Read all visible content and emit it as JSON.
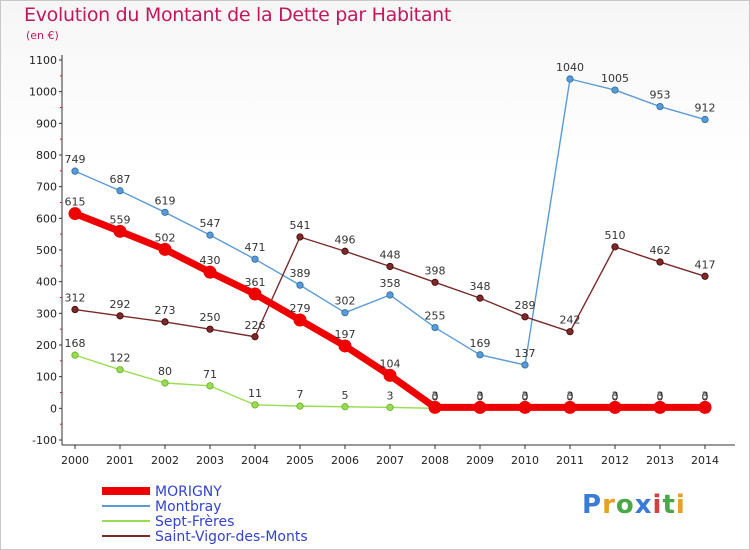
{
  "title": "Evolution du Montant de la Dette par Habitant",
  "subtitle": "(en €)",
  "logo": "Proxiti",
  "chart_data": {
    "type": "line",
    "title": "Evolution du Montant de la Dette par Habitant",
    "ylabel": "(en €)",
    "ylim": [
      -100,
      1100
    ],
    "yticks": [
      -100,
      0,
      100,
      200,
      300,
      400,
      500,
      600,
      700,
      800,
      900,
      1000,
      1100
    ],
    "x": [
      2000,
      2001,
      2002,
      2003,
      2004,
      2005,
      2006,
      2007,
      2008,
      2009,
      2010,
      2011,
      2012,
      2013,
      2014
    ],
    "grid": false,
    "legend": "bottom-left",
    "series": [
      {
        "name": "MORIGNY",
        "color": "#ee0000",
        "values": [
          615,
          559,
          502,
          430,
          361,
          279,
          197,
          104,
          3,
          3,
          3,
          3,
          3,
          3,
          3
        ]
      },
      {
        "name": "Montbray",
        "color": "#5b9bd5",
        "values": [
          749,
          687,
          619,
          547,
          471,
          389,
          302,
          358,
          255,
          169,
          137,
          1040,
          1005,
          953,
          912
        ]
      },
      {
        "name": "Sept-Frères",
        "color": "#99dd55",
        "values": [
          168,
          122,
          80,
          71,
          11,
          7,
          5,
          3,
          0,
          0,
          0,
          0,
          0,
          0,
          0
        ]
      },
      {
        "name": "Saint-Vigor-des-Monts",
        "color": "#7a2a2a",
        "values": [
          312,
          292,
          273,
          250,
          226,
          541,
          496,
          448,
          398,
          348,
          289,
          242,
          510,
          462,
          417
        ]
      }
    ],
    "labels": [
      {
        "series": 0,
        "text": [
          "615",
          "559",
          "502",
          "430",
          "361",
          "279",
          "197",
          "104",
          "3",
          "3",
          "3",
          "3",
          "3",
          "3",
          "3"
        ]
      },
      {
        "series": 1,
        "text": [
          "749",
          "687",
          "619",
          "547",
          "471",
          "389",
          "302",
          "358",
          "255",
          "169",
          "137",
          "1040",
          "1005",
          "953",
          "912"
        ]
      },
      {
        "series": 2,
        "text": [
          "168",
          "122",
          "80",
          "71",
          "11",
          "7",
          "5",
          "3",
          "0",
          "0",
          "0",
          "0",
          "0",
          "0",
          "0"
        ]
      },
      {
        "series": 3,
        "text": [
          "312",
          "292",
          "273",
          "250",
          "226",
          "541",
          "496",
          "448",
          "398",
          "348",
          "289",
          "242",
          "510",
          "462",
          "417"
        ]
      }
    ]
  }
}
